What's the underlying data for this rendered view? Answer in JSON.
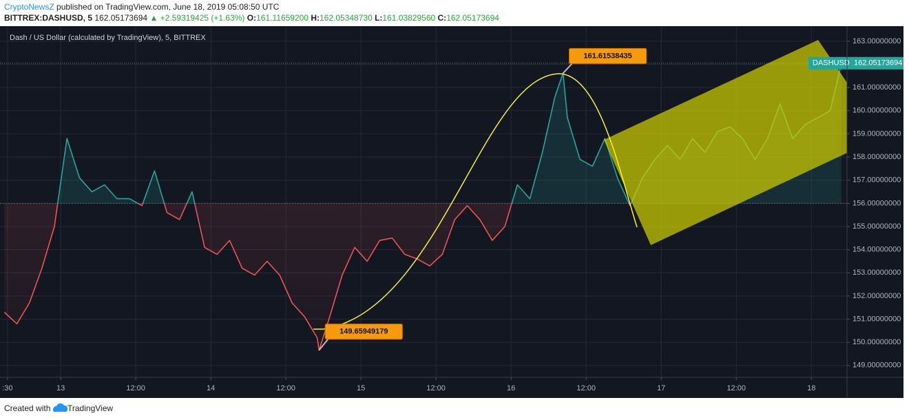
{
  "header": {
    "brand": "CryptoNewsZ",
    "published": "published on TradingView.com, June 18, 2019 05:08:50 UTC"
  },
  "quote": {
    "symbol": "BITTREX:DASHUSD, 5",
    "last": "162.05173694",
    "change": "▲ +2.59319425 (+1.63%)",
    "open_label": "O:",
    "open": "161.11659200",
    "high_label": "H:",
    "high": "162.05348730",
    "low_label": "L:",
    "low": "161.03829560",
    "close_label": "C:",
    "close": "162.05173694"
  },
  "chart_data": {
    "type": "baseline",
    "title": "Dash / US Dollar (calculated by TradingView), 5, BITTREX",
    "x": [
      -9,
      -7,
      -5,
      -3,
      -1,
      1,
      3,
      5,
      7,
      9,
      11,
      13,
      15,
      17,
      19,
      21,
      23,
      25,
      27,
      29,
      31,
      33,
      35,
      37,
      39,
      41,
      41.3,
      43,
      45,
      47,
      49,
      51,
      53,
      55,
      57,
      59,
      61,
      63,
      65,
      67,
      69,
      71,
      73,
      75,
      77,
      79,
      80.3,
      81,
      83,
      85,
      87,
      89,
      91,
      93,
      95,
      97,
      99,
      101,
      103,
      105,
      107,
      109,
      111,
      113,
      115,
      117,
      119,
      121,
      123,
      124.8
    ],
    "series": [
      {
        "name": "DASHUSD",
        "color_up": "#26a69a",
        "color_down": "#ef5350",
        "values": [
          151.3,
          150.8,
          151.7,
          153.2,
          155.0,
          158.8,
          157.1,
          156.5,
          156.8,
          156.2,
          156.2,
          155.9,
          157.4,
          155.6,
          155.3,
          156.5,
          154.1,
          153.8,
          154.4,
          153.2,
          152.9,
          153.5,
          152.9,
          151.7,
          151.1,
          150.2,
          149.65949179,
          151.1,
          152.9,
          154.1,
          153.5,
          154.4,
          154.5,
          153.8,
          153.6,
          153.3,
          153.8,
          155.3,
          155.9,
          155.3,
          154.4,
          155.0,
          156.8,
          156.2,
          158.2,
          160.6,
          161.61538435,
          159.7,
          157.9,
          157.6,
          158.8,
          157.1,
          155.9,
          157.1,
          157.9,
          158.5,
          157.9,
          158.8,
          158.2,
          159.1,
          159.3,
          158.8,
          157.9,
          158.8,
          160.3,
          158.8,
          159.4,
          159.7,
          160.0,
          162.05173694
        ]
      }
    ],
    "baseline": 156,
    "xlim": [
      -9.7,
      125.7
    ],
    "xticks": [
      {
        "value": -8.5,
        "label": ":30"
      },
      {
        "value": 0,
        "label": "13"
      },
      {
        "value": 12,
        "label": "12:00"
      },
      {
        "value": 24,
        "label": "14"
      },
      {
        "value": 36,
        "label": "12:00"
      },
      {
        "value": 48,
        "label": "15"
      },
      {
        "value": 60,
        "label": "12:00"
      },
      {
        "value": 72,
        "label": "16"
      },
      {
        "value": 84,
        "label": "12:00"
      },
      {
        "value": 96,
        "label": "17"
      },
      {
        "value": 108,
        "label": "12:00"
      },
      {
        "value": 120,
        "label": "18"
      }
    ],
    "ylim": [
      148.49,
      163.59
    ],
    "yticks": [
      {
        "value": 149,
        "label": "149.00000000"
      },
      {
        "value": 150,
        "label": "150.00000000"
      },
      {
        "value": 151,
        "label": "151.00000000"
      },
      {
        "value": 152,
        "label": "152.00000000"
      },
      {
        "value": 153,
        "label": "153.00000000"
      },
      {
        "value": 154,
        "label": "154.00000000"
      },
      {
        "value": 155,
        "label": "155.00000000"
      },
      {
        "value": 156,
        "label": "156.00000000"
      },
      {
        "value": 157,
        "label": "157.00000000"
      },
      {
        "value": 158,
        "label": "158.00000000"
      },
      {
        "value": 159,
        "label": "159.00000000"
      },
      {
        "value": 160,
        "label": "160.00000000"
      },
      {
        "value": 161,
        "label": "161.00000000"
      },
      {
        "value": 162,
        "label": "162.00000000"
      },
      {
        "value": 163,
        "label": "163.00000000"
      }
    ],
    "grid": true,
    "annotations": [
      {
        "text": "149.65949179",
        "x": 41.3,
        "y": 149.65949179,
        "side": "below"
      },
      {
        "text": "161.61538435",
        "x": 80.3,
        "y": 161.61538435,
        "side": "above"
      }
    ],
    "last_price_label": "162.05173694"
  },
  "footer": {
    "text": "Created with",
    "brand": "TradingView"
  }
}
